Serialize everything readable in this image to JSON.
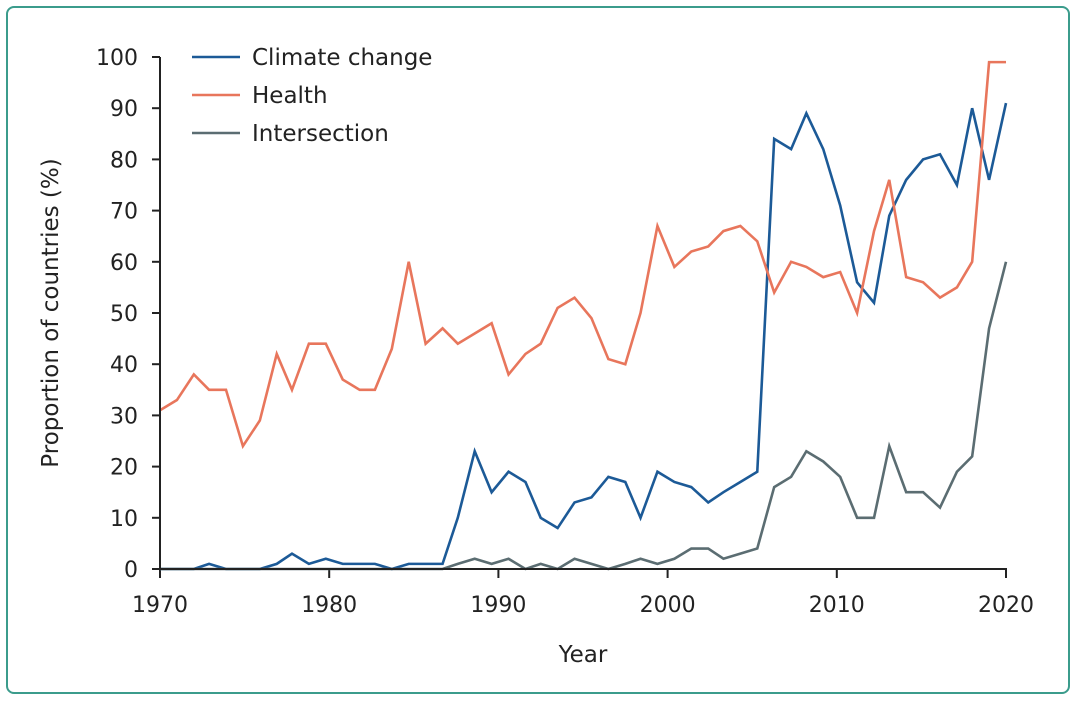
{
  "chart_data": {
    "type": "line",
    "title": "",
    "xlabel": "Year",
    "ylabel": "Proportion of countries (%)",
    "xlim": [
      1970,
      2020
    ],
    "ylim": [
      0,
      100
    ],
    "xticks": [
      1970,
      1980,
      1990,
      2000,
      2010,
      2020
    ],
    "yticks": [
      0,
      10,
      20,
      30,
      40,
      50,
      60,
      70,
      80,
      90,
      100
    ],
    "grid": false,
    "legend_position": "top-left",
    "x": [
      1970,
      1971,
      1972,
      1972.9,
      1973.9,
      1974.9,
      1975.9,
      1976.9,
      1977.8,
      1978.8,
      1979.8,
      1980.8,
      1981.8,
      1982.7,
      1983.7,
      1984.7,
      1985.7,
      1986.7,
      1987.6,
      1988.6,
      1989.6,
      1990.6,
      1991.6,
      1992.5,
      1993.5,
      1994.5,
      1995.5,
      1996.5,
      1997.5,
      1998.4,
      1999.4,
      2000.4,
      2001.4,
      2002.4,
      2003.3,
      2004.3,
      2005.3,
      2006.3,
      2007.3,
      2008.2,
      2009.2,
      2010.2,
      2011.2,
      2012.2,
      2013.1,
      2014.1,
      2015.1,
      2016.1,
      2017.1,
      2018.0,
      2019.0,
      2020
    ],
    "series": [
      {
        "name": "Climate change",
        "color": "#1c5a97",
        "values": [
          0,
          0,
          0,
          1,
          0,
          0,
          0,
          1,
          3,
          1,
          2,
          1,
          1,
          1,
          0,
          1,
          1,
          1,
          10,
          23,
          15,
          19,
          17,
          10,
          8,
          13,
          14,
          18,
          17,
          10,
          19,
          17,
          16,
          13,
          15,
          17,
          19,
          84,
          82,
          89,
          82,
          71,
          56,
          52,
          69,
          76,
          80,
          81,
          75,
          90,
          76,
          91
        ]
      },
      {
        "name": "Health",
        "color": "#e8765c",
        "values": [
          31,
          33,
          38,
          35,
          35,
          24,
          29,
          42,
          35,
          44,
          44,
          37,
          35,
          35,
          43,
          60,
          44,
          47,
          44,
          46,
          48,
          38,
          42,
          44,
          51,
          53,
          49,
          41,
          40,
          50,
          67,
          59,
          62,
          63,
          66,
          67,
          64,
          54,
          60,
          59,
          57,
          58,
          50,
          66,
          76,
          57,
          56,
          53,
          55,
          60,
          99,
          99
        ]
      },
      {
        "name": "Intersection",
        "color": "#5b6d72",
        "values": [
          0,
          0,
          0,
          0,
          0,
          0,
          0,
          0,
          0,
          0,
          0,
          0,
          0,
          0,
          0,
          0,
          0,
          0,
          1,
          2,
          1,
          2,
          0,
          1,
          0,
          2,
          1,
          0,
          1,
          2,
          1,
          2,
          4,
          4,
          2,
          3,
          4,
          16,
          18,
          23,
          21,
          18,
          10,
          10,
          24,
          15,
          15,
          12,
          19,
          22,
          47,
          60
        ]
      }
    ]
  }
}
